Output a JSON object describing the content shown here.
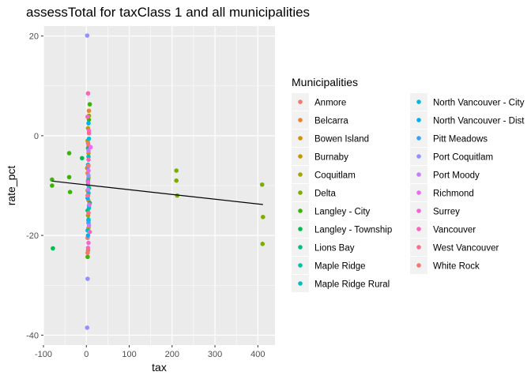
{
  "chart_data": {
    "type": "scatter",
    "title": "assessTotal for taxClass 1 and all municipalities",
    "xlabel": "tax",
    "ylabel": "rate_pct",
    "xlim": [
      -100,
      440
    ],
    "ylim": [
      -42,
      22
    ],
    "x_ticks": [
      -100,
      0,
      100,
      200,
      300,
      400
    ],
    "x_tick_labels": [
      "-100",
      "0",
      "100",
      "200",
      "300",
      "400"
    ],
    "y_ticks": [
      -40,
      -20,
      0,
      20
    ],
    "y_tick_labels": [
      "-40",
      "-20",
      "0",
      "20"
    ],
    "grid": true,
    "legend_title": "Municipalities",
    "legend_position": "right",
    "series": [
      {
        "name": "Anmore",
        "color": "#F8766D",
        "points": [
          [
            5,
            -2
          ],
          [
            4,
            -12
          ],
          [
            3,
            -20.5
          ]
        ]
      },
      {
        "name": "Belcarra",
        "color": "#EA8331",
        "points": [
          [
            6,
            5
          ],
          [
            3,
            -7.5
          ],
          [
            5,
            -13
          ]
        ]
      },
      {
        "name": "Bowen Island",
        "color": "#D89000",
        "points": [
          [
            5,
            -3.5
          ],
          [
            2,
            -6.5
          ],
          [
            4,
            -23
          ]
        ]
      },
      {
        "name": "Burnaby",
        "color": "#C09B00",
        "points": [
          [
            4,
            1.5
          ],
          [
            3,
            -11
          ],
          [
            5,
            -18.5
          ]
        ]
      },
      {
        "name": "Coquitlam",
        "color": "#A3A500",
        "points": [
          [
            3,
            -1
          ],
          [
            5,
            -8.5
          ],
          [
            4,
            -16
          ]
        ]
      },
      {
        "name": "Delta",
        "color": "#7CAE00",
        "points": [
          [
            6,
            4
          ],
          [
            210,
            -7
          ],
          [
            210,
            -9
          ],
          [
            212,
            -12
          ],
          [
            410,
            -9.8
          ],
          [
            412,
            -16.3
          ],
          [
            411,
            -21.7
          ]
        ]
      },
      {
        "name": "Langley - City",
        "color": "#39B600",
        "points": [
          [
            -80,
            -8.8
          ],
          [
            -80,
            -10
          ],
          [
            -40,
            -3.5
          ],
          [
            -40,
            -8.3
          ],
          [
            -38,
            -11.3
          ],
          [
            8,
            6.3
          ],
          [
            6,
            3.2
          ],
          [
            3,
            -24.3
          ]
        ]
      },
      {
        "name": "Langley - Township",
        "color": "#00BB4E",
        "points": [
          [
            -78,
            -22.6
          ],
          [
            -10,
            -4.5
          ],
          [
            8,
            -13.5
          ],
          [
            5,
            -17
          ]
        ]
      },
      {
        "name": "Lions Bay",
        "color": "#00BF7D",
        "points": [
          [
            4,
            -2.5
          ],
          [
            6,
            -10.5
          ],
          [
            3,
            -15
          ]
        ]
      },
      {
        "name": "Maple Ridge",
        "color": "#00C1A3",
        "points": [
          [
            5,
            -4.2
          ],
          [
            4,
            -9
          ],
          [
            6,
            -14.5
          ]
        ]
      },
      {
        "name": "Maple Ridge Rural",
        "color": "#00BFC4",
        "points": [
          [
            4,
            -5.8
          ],
          [
            5,
            -11.5
          ],
          [
            3,
            -19
          ]
        ]
      },
      {
        "name": "North Vancouver - City",
        "color": "#00BAE0",
        "points": [
          [
            6,
            -0.6
          ],
          [
            4,
            -9.8
          ],
          [
            5,
            -16.8
          ]
        ]
      },
      {
        "name": "North Vancouver - Dist",
        "color": "#00B0F6",
        "points": [
          [
            5,
            2.5
          ],
          [
            3,
            -12.5
          ],
          [
            4,
            -20
          ]
        ]
      },
      {
        "name": "Pitt Meadows",
        "color": "#35A2FF",
        "points": [
          [
            4,
            -6.2
          ],
          [
            6,
            -14
          ],
          [
            5,
            -17.5
          ]
        ]
      },
      {
        "name": "Port Coquitlam",
        "color": "#9590FF",
        "points": [
          [
            2,
            20.1
          ],
          [
            3,
            -28.7
          ],
          [
            2,
            -38.5
          ],
          [
            5,
            -8
          ]
        ]
      },
      {
        "name": "Port Moody",
        "color": "#C77CFF",
        "points": [
          [
            5,
            -3
          ],
          [
            4,
            -10.8
          ],
          [
            6,
            -18
          ]
        ]
      },
      {
        "name": "Richmond",
        "color": "#E76BF3",
        "points": [
          [
            10,
            -2.3
          ],
          [
            5,
            -7
          ],
          [
            7,
            -13.8
          ]
        ]
      },
      {
        "name": "Surrey",
        "color": "#FA62DB",
        "points": [
          [
            6,
            1
          ],
          [
            4,
            -9.3
          ],
          [
            5,
            -21.5
          ]
        ]
      },
      {
        "name": "Vancouver",
        "color": "#FF62BC",
        "points": [
          [
            4,
            8.5
          ],
          [
            3,
            3.8
          ],
          [
            5,
            -4.8
          ],
          [
            8,
            -19.3
          ],
          [
            4,
            -22.5
          ]
        ]
      },
      {
        "name": "West Vancouver",
        "color": "#FF6C91",
        "points": [
          [
            6,
            0.5
          ],
          [
            3,
            -12
          ],
          [
            5,
            -15.5
          ]
        ]
      },
      {
        "name": "White Rock",
        "color": "#F8766D",
        "points": [
          [
            4,
            -1.5
          ],
          [
            5,
            -6
          ],
          [
            3,
            -23.5
          ]
        ]
      }
    ],
    "trend_line": {
      "x": [
        -80,
        412
      ],
      "y": [
        -9.1,
        -13.8
      ],
      "color": "#000000"
    }
  }
}
